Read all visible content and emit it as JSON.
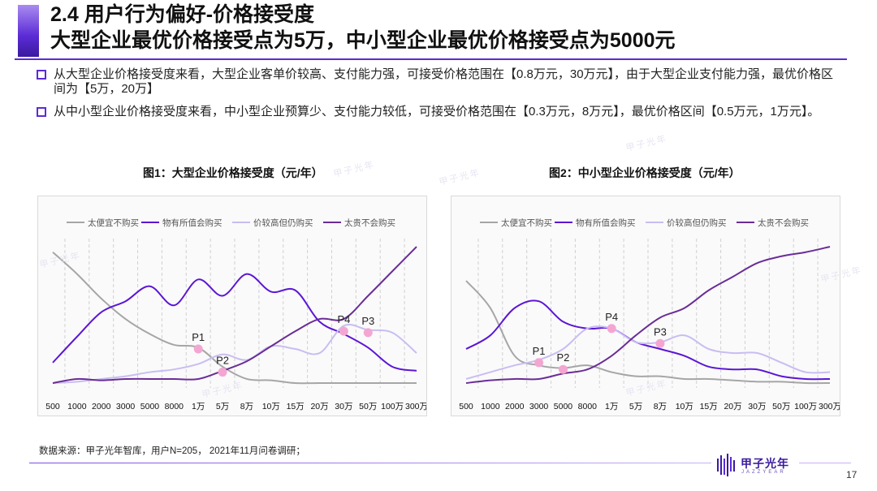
{
  "header": {
    "title_line1": "2.4 用户行为偏好-价格接受度",
    "title_line2": "大型企业最优价格接受点为5万，中小型企业最优价格接受点为5000元"
  },
  "bullets": [
    "从大型企业价格接受度来看，大型企业客单价较高、支付能力强，可接受价格范围在【0.8万元，30万元】，由于大型企业支付能力强，最优价格区间为【5万，20万】",
    "从中小型企业价格接受度来看，中小型企业预算少、支付能力较低，可接受价格范围在【0.3万元，8万元】，最优价格区间【0.5万元，1万元】。"
  ],
  "watermark_text": "甲子光年",
  "chart_data": [
    {
      "type": "line",
      "title": "图1：大型企业价格接受度（元/年）",
      "categories": [
        "500",
        "1000",
        "2000",
        "3000",
        "5000",
        "8000",
        "1万",
        "5万",
        "8万",
        "10万",
        "15万",
        "20万",
        "30万",
        "50万",
        "100万",
        "300万"
      ],
      "series": [
        {
          "name": "太便宜不购买",
          "color": "#a6a6a6",
          "values": [
            96,
            80,
            62,
            47,
            36,
            28,
            26,
            12,
            3,
            2,
            0,
            0,
            0,
            0,
            0,
            0
          ]
        },
        {
          "name": "物有所值会购买",
          "color": "#5b16d6",
          "values": [
            15,
            34,
            52,
            60,
            71,
            57,
            76,
            64,
            80,
            67,
            68,
            45,
            36,
            26,
            12,
            9
          ]
        },
        {
          "name": "价较高但仍购买",
          "color": "#c9bdf2",
          "values": [
            0,
            1,
            3,
            5,
            8,
            10,
            14,
            21,
            17,
            27,
            25,
            22,
            42,
            39,
            37,
            22
          ]
        },
        {
          "name": "太贵不会购买",
          "color": "#6a2d96",
          "values": [
            0,
            3,
            2,
            3,
            3,
            3,
            3,
            9,
            16,
            27,
            38,
            47,
            47,
            64,
            82,
            100
          ]
        }
      ],
      "annotations": [
        {
          "label": "P1",
          "cat": 6,
          "value": 25
        },
        {
          "label": "P2",
          "cat": 7,
          "value": 8
        },
        {
          "label": "P4",
          "cat": 12,
          "value": 38
        },
        {
          "label": "P3",
          "cat": 13,
          "value": 37
        }
      ],
      "ylim": [
        0,
        100
      ],
      "legend": "top"
    },
    {
      "type": "line",
      "title": "图2：中小型企业价格接受度（元/年）",
      "categories": [
        "500",
        "1000",
        "2000",
        "3000",
        "5000",
        "8000",
        "1万",
        "5万",
        "8万",
        "10万",
        "15万",
        "20万",
        "30万",
        "50万",
        "100万",
        "300万"
      ],
      "series": [
        {
          "name": "太便宜不购买",
          "color": "#a6a6a6",
          "values": [
            75,
            55,
            20,
            13,
            11,
            13,
            8,
            5,
            5,
            3,
            3,
            2,
            1,
            1,
            0,
            0
          ]
        },
        {
          "name": "物有所值会购买",
          "color": "#5b16d6",
          "values": [
            25,
            35,
            55,
            60,
            45,
            40,
            40,
            30,
            25,
            20,
            12,
            10,
            10,
            5,
            3,
            3
          ]
        },
        {
          "name": "价较高但仍购买",
          "color": "#c9bdf2",
          "values": [
            3,
            8,
            13,
            17,
            25,
            40,
            40,
            30,
            30,
            35,
            25,
            22,
            22,
            15,
            8,
            8
          ]
        },
        {
          "name": "太贵不会购买",
          "color": "#6a2d96",
          "values": [
            0,
            2,
            3,
            3,
            7,
            10,
            20,
            35,
            48,
            55,
            68,
            78,
            88,
            93,
            96,
            100
          ]
        }
      ],
      "annotations": [
        {
          "label": "P1",
          "cat": 3,
          "value": 15
        },
        {
          "label": "P2",
          "cat": 4,
          "value": 10
        },
        {
          "label": "P4",
          "cat": 6,
          "value": 40
        },
        {
          "label": "P3",
          "cat": 8,
          "value": 29
        }
      ],
      "ylim": [
        0,
        100
      ],
      "legend": "top"
    }
  ],
  "source": "数据来源：甲子光年智库，用户N=205， 2021年11月问卷调研；",
  "logo": {
    "name": "甲子光年",
    "sub": "JAZZYEAR"
  },
  "page_number": "17"
}
